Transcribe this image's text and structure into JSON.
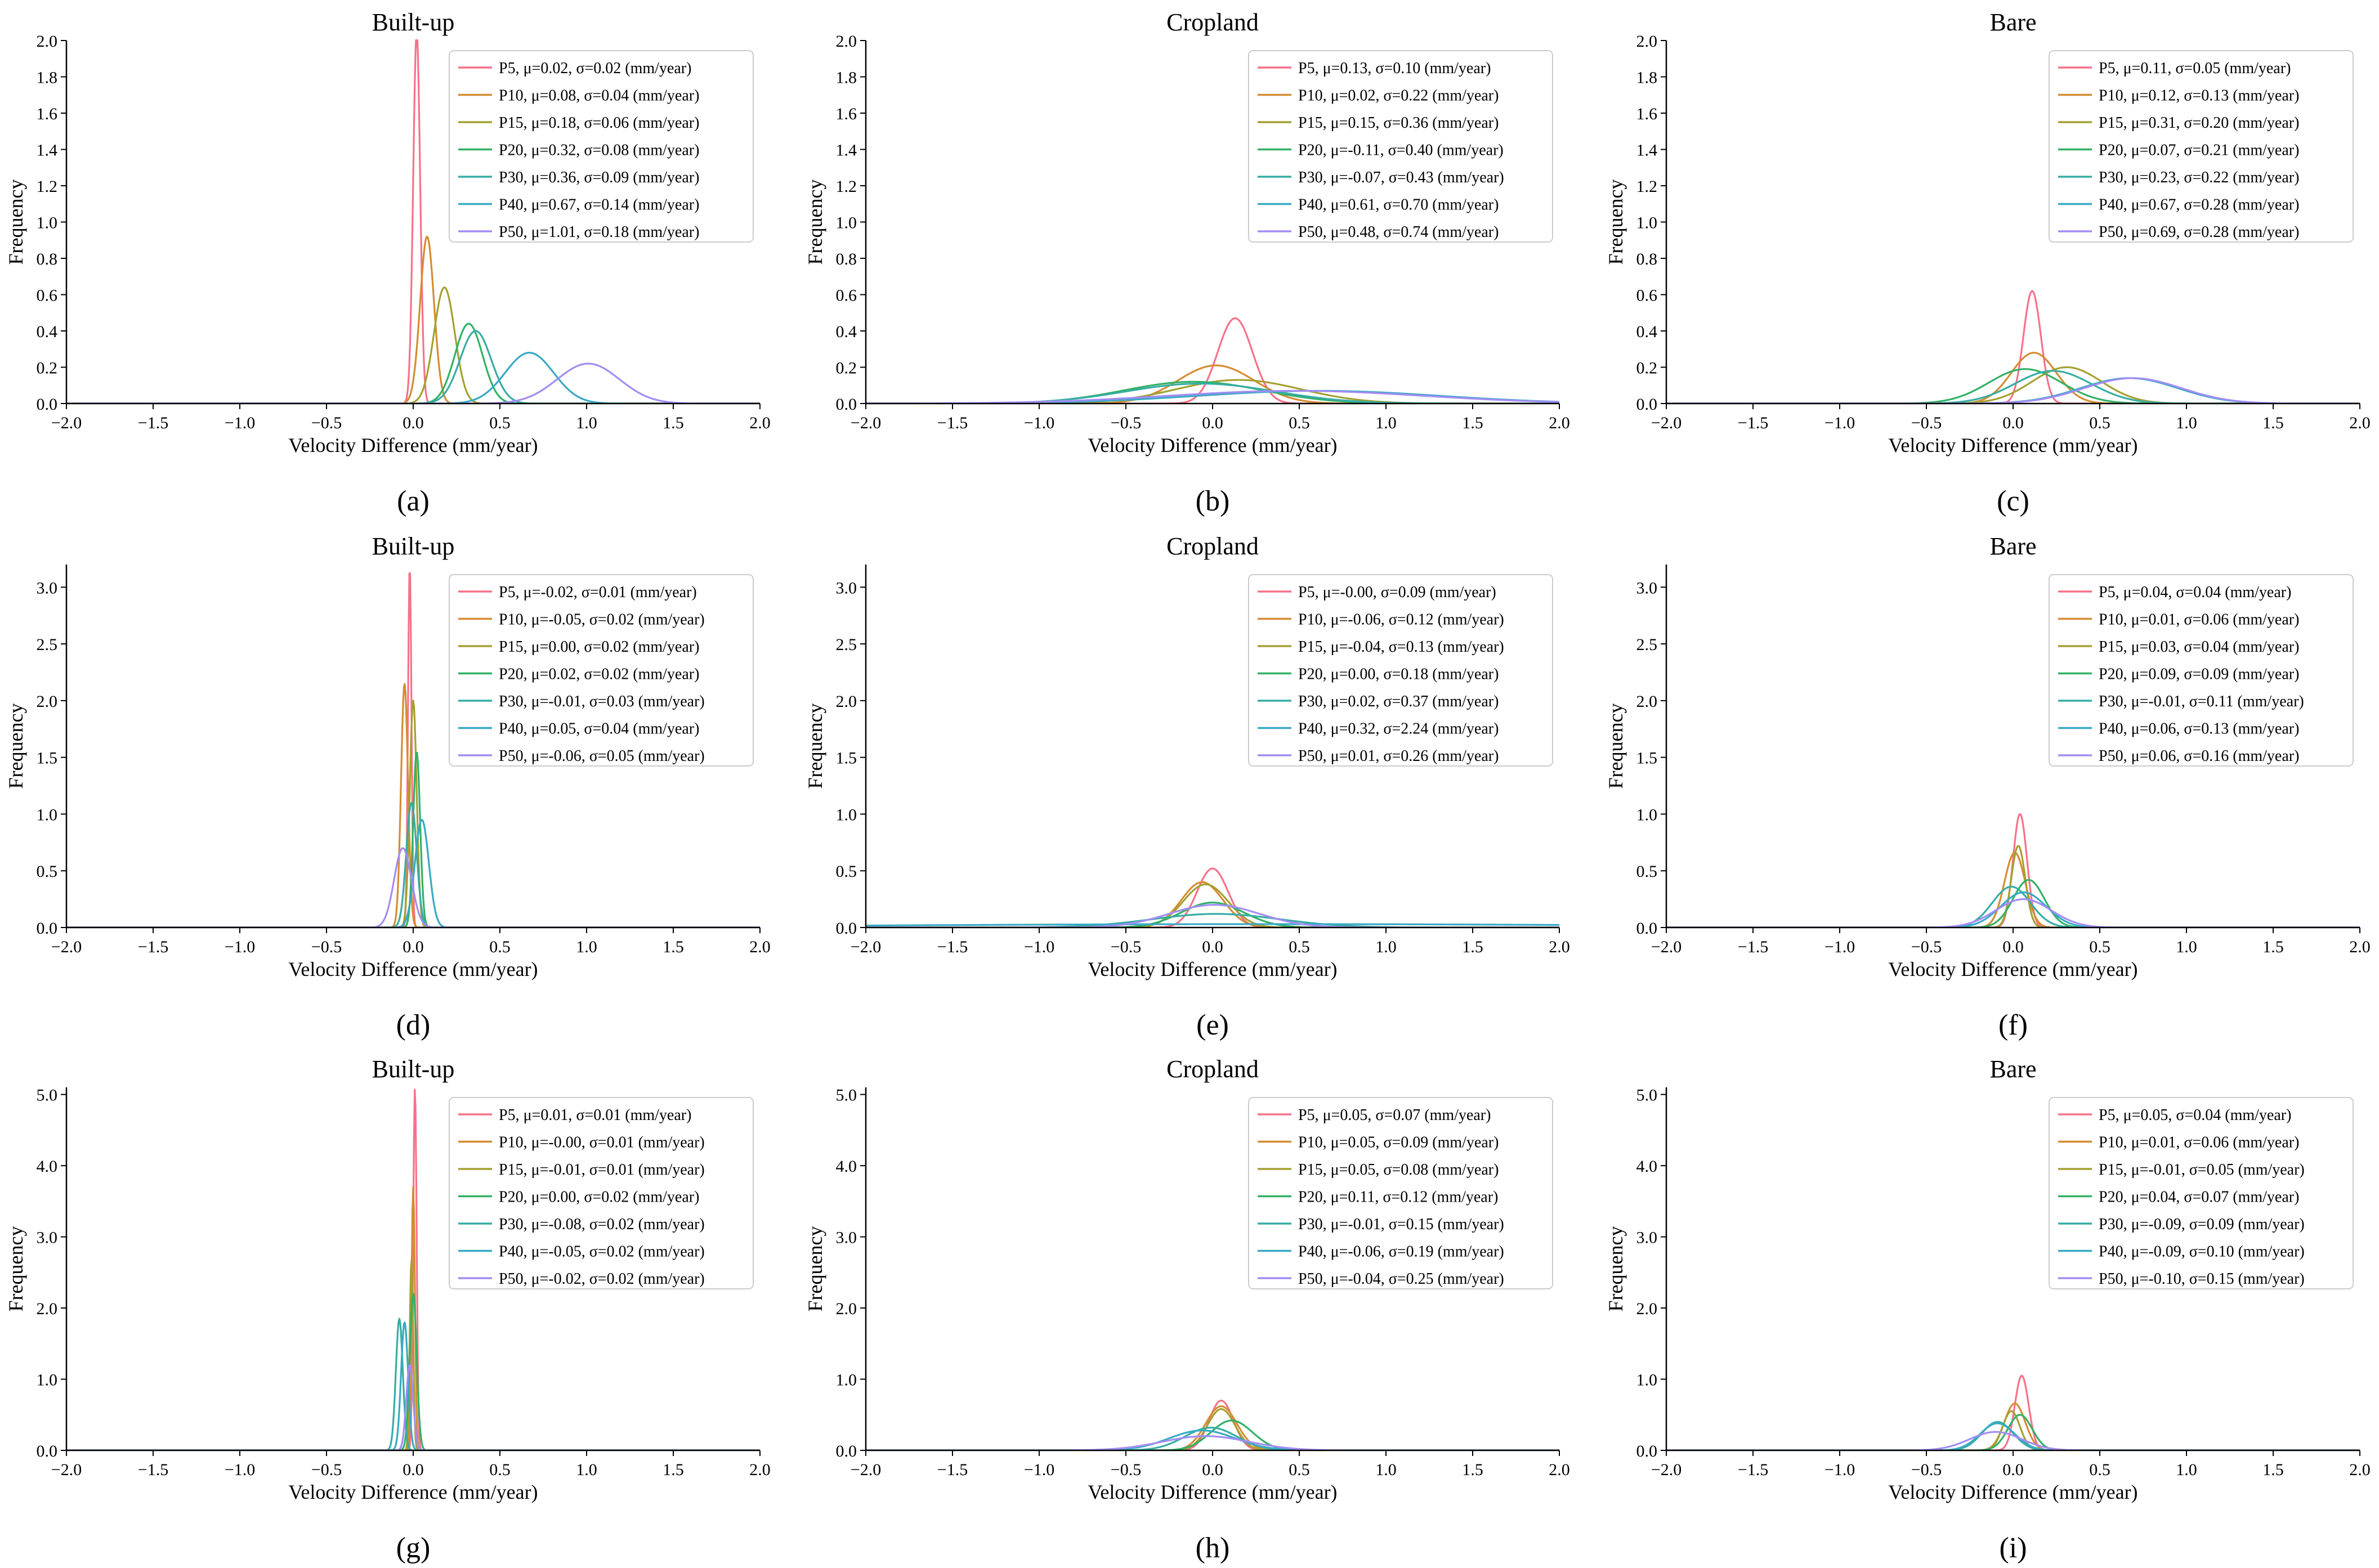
{
  "figure": {
    "x_axis_label": "Velocity Difference (mm/year)",
    "y_axis_label": "Frequency",
    "x_tick_labels": [
      "−2.0",
      "−1.5",
      "−1.0",
      "−0.5",
      "0.0",
      "0.5",
      "1.0",
      "1.5",
      "2.0"
    ],
    "unit_suffix": "(mm/year)",
    "series_colors": [
      "#f77189",
      "#d58c32",
      "#a4a031",
      "#32b166",
      "#36ada4",
      "#38a9c5",
      "#a48cf4"
    ]
  },
  "chart_data": [
    {
      "type": "line",
      "panel_label": "(a)",
      "title": "Built-up",
      "xlabel": "Velocity Difference (mm/year)",
      "ylabel": "Frequency",
      "xlim": [
        -2.0,
        2.0
      ],
      "ylim": [
        0,
        2.0
      ],
      "y_ticks": [
        0.0,
        0.2,
        0.4,
        0.6,
        0.8,
        1.0,
        1.2,
        1.4,
        1.6,
        1.8,
        2.0
      ],
      "y_tick_labels": [
        "0.0",
        "0.2",
        "0.4",
        "0.6",
        "0.8",
        "1.0",
        "1.2",
        "1.4",
        "1.6",
        "1.8",
        "2.0"
      ],
      "legend": "top-right",
      "series": [
        {
          "name": "P5",
          "mu": 0.02,
          "sigma": 0.02,
          "peak": 2.05,
          "label": "P5, μ=0.02, σ=0.02 (mm/year)"
        },
        {
          "name": "P10",
          "mu": 0.08,
          "sigma": 0.04,
          "peak": 0.92,
          "label": "P10, μ=0.08, σ=0.04 (mm/year)"
        },
        {
          "name": "P15",
          "mu": 0.18,
          "sigma": 0.06,
          "peak": 0.64,
          "label": "P15, μ=0.18, σ=0.06 (mm/year)"
        },
        {
          "name": "P20",
          "mu": 0.32,
          "sigma": 0.08,
          "peak": 0.44,
          "label": "P20, μ=0.32, σ=0.08 (mm/year)"
        },
        {
          "name": "P30",
          "mu": 0.36,
          "sigma": 0.09,
          "peak": 0.4,
          "label": "P30, μ=0.36, σ=0.09 (mm/year)"
        },
        {
          "name": "P40",
          "mu": 0.67,
          "sigma": 0.14,
          "peak": 0.28,
          "label": "P40, μ=0.67, σ=0.14 (mm/year)"
        },
        {
          "name": "P50",
          "mu": 1.01,
          "sigma": 0.18,
          "peak": 0.22,
          "label": "P50, μ=1.01, σ=0.18 (mm/year)"
        }
      ]
    },
    {
      "type": "line",
      "panel_label": "(b)",
      "title": "Cropland",
      "xlabel": "Velocity Difference (mm/year)",
      "ylabel": "Frequency",
      "xlim": [
        -2.0,
        2.0
      ],
      "ylim": [
        0,
        2.0
      ],
      "y_ticks": [
        0.0,
        0.2,
        0.4,
        0.6,
        0.8,
        1.0,
        1.2,
        1.4,
        1.6,
        1.8,
        2.0
      ],
      "y_tick_labels": [
        "0.0",
        "0.2",
        "0.4",
        "0.6",
        "0.8",
        "1.0",
        "1.2",
        "1.4",
        "1.6",
        "1.8",
        "2.0"
      ],
      "legend": "top-right",
      "series": [
        {
          "name": "P5",
          "mu": 0.13,
          "sigma": 0.1,
          "peak": 0.47,
          "label": "P5, μ=0.13, σ=0.10 (mm/year)"
        },
        {
          "name": "P10",
          "mu": 0.02,
          "sigma": 0.22,
          "peak": 0.21,
          "label": "P10, μ=0.02, σ=0.22 (mm/year)"
        },
        {
          "name": "P15",
          "mu": 0.15,
          "sigma": 0.36,
          "peak": 0.13,
          "label": "P15, μ=0.15, σ=0.36 (mm/year)"
        },
        {
          "name": "P20",
          "mu": -0.11,
          "sigma": 0.4,
          "peak": 0.12,
          "label": "P20, μ=-0.11, σ=0.40 (mm/year)"
        },
        {
          "name": "P30",
          "mu": -0.07,
          "sigma": 0.43,
          "peak": 0.11,
          "label": "P30, μ=-0.07, σ=0.43 (mm/year)"
        },
        {
          "name": "P40",
          "mu": 0.61,
          "sigma": 0.7,
          "peak": 0.07,
          "label": "P40, μ=0.61, σ=0.70 (mm/year)"
        },
        {
          "name": "P50",
          "mu": 0.48,
          "sigma": 0.74,
          "peak": 0.07,
          "label": "P50, μ=0.48, σ=0.74 (mm/year)"
        }
      ]
    },
    {
      "type": "line",
      "panel_label": "(c)",
      "title": "Bare",
      "xlabel": "Velocity Difference (mm/year)",
      "ylabel": "Frequency",
      "xlim": [
        -2.0,
        2.0
      ],
      "ylim": [
        0,
        2.0
      ],
      "y_ticks": [
        0.0,
        0.2,
        0.4,
        0.6,
        0.8,
        1.0,
        1.2,
        1.4,
        1.6,
        1.8,
        2.0
      ],
      "y_tick_labels": [
        "0.0",
        "0.2",
        "0.4",
        "0.6",
        "0.8",
        "1.0",
        "1.2",
        "1.4",
        "1.6",
        "1.8",
        "2.0"
      ],
      "legend": "top-right",
      "series": [
        {
          "name": "P5",
          "mu": 0.11,
          "sigma": 0.05,
          "peak": 0.62,
          "label": "P5, μ=0.11, σ=0.05 (mm/year)"
        },
        {
          "name": "P10",
          "mu": 0.12,
          "sigma": 0.13,
          "peak": 0.28,
          "label": "P10, μ=0.12, σ=0.13 (mm/year)"
        },
        {
          "name": "P15",
          "mu": 0.31,
          "sigma": 0.2,
          "peak": 0.2,
          "label": "P15, μ=0.31, σ=0.20 (mm/year)"
        },
        {
          "name": "P20",
          "mu": 0.07,
          "sigma": 0.21,
          "peak": 0.19,
          "label": "P20, μ=0.07, σ=0.21 (mm/year)"
        },
        {
          "name": "P30",
          "mu": 0.23,
          "sigma": 0.22,
          "peak": 0.18,
          "label": "P30, μ=0.23, σ=0.22 (mm/year)"
        },
        {
          "name": "P40",
          "mu": 0.67,
          "sigma": 0.28,
          "peak": 0.14,
          "label": "P40, μ=0.67, σ=0.28 (mm/year)"
        },
        {
          "name": "P50",
          "mu": 0.69,
          "sigma": 0.28,
          "peak": 0.14,
          "label": "P50, μ=0.69, σ=0.28 (mm/year)"
        }
      ]
    },
    {
      "type": "line",
      "panel_label": "(d)",
      "title": "Built-up",
      "xlabel": "Velocity Difference (mm/year)",
      "ylabel": "Frequency",
      "xlim": [
        -2.0,
        2.0
      ],
      "ylim": [
        0,
        3.2
      ],
      "y_ticks": [
        0.0,
        0.5,
        1.0,
        1.5,
        2.0,
        2.5,
        3.0
      ],
      "y_tick_labels": [
        "0.0",
        "0.5",
        "1.0",
        "1.5",
        "2.0",
        "2.5",
        "3.0"
      ],
      "legend": "top-right",
      "series": [
        {
          "name": "P5",
          "mu": -0.02,
          "sigma": 0.01,
          "peak": 3.2,
          "label": "P5, μ=-0.02, σ=0.01 (mm/year)"
        },
        {
          "name": "P10",
          "mu": -0.05,
          "sigma": 0.02,
          "peak": 2.15,
          "label": "P10, μ=-0.05, σ=0.02 (mm/year)"
        },
        {
          "name": "P15",
          "mu": 0.0,
          "sigma": 0.02,
          "peak": 2.0,
          "label": "P15, μ=0.00, σ=0.02 (mm/year)"
        },
        {
          "name": "P20",
          "mu": 0.02,
          "sigma": 0.02,
          "peak": 1.55,
          "label": "P20, μ=0.02, σ=0.02 (mm/year)"
        },
        {
          "name": "P30",
          "mu": -0.01,
          "sigma": 0.03,
          "peak": 1.1,
          "label": "P30, μ=-0.01, σ=0.03 (mm/year)"
        },
        {
          "name": "P40",
          "mu": 0.05,
          "sigma": 0.04,
          "peak": 0.95,
          "label": "P40, μ=0.05, σ=0.04 (mm/year)"
        },
        {
          "name": "P50",
          "mu": -0.06,
          "sigma": 0.05,
          "peak": 0.7,
          "label": "P50, μ=-0.06, σ=0.05 (mm/year)"
        }
      ]
    },
    {
      "type": "line",
      "panel_label": "(e)",
      "title": "Cropland",
      "xlabel": "Velocity Difference (mm/year)",
      "ylabel": "Frequency",
      "xlim": [
        -2.0,
        2.0
      ],
      "ylim": [
        0,
        3.2
      ],
      "y_ticks": [
        0.0,
        0.5,
        1.0,
        1.5,
        2.0,
        2.5,
        3.0
      ],
      "y_tick_labels": [
        "0.0",
        "0.5",
        "1.0",
        "1.5",
        "2.0",
        "2.5",
        "3.0"
      ],
      "legend": "top-right",
      "series": [
        {
          "name": "P5",
          "mu": -0.0,
          "sigma": 0.09,
          "peak": 0.52,
          "label": "P5, μ=-0.00, σ=0.09 (mm/year)"
        },
        {
          "name": "P10",
          "mu": -0.06,
          "sigma": 0.12,
          "peak": 0.4,
          "label": "P10, μ=-0.06, σ=0.12 (mm/year)"
        },
        {
          "name": "P15",
          "mu": -0.04,
          "sigma": 0.13,
          "peak": 0.38,
          "label": "P15, μ=-0.04, σ=0.13 (mm/year)"
        },
        {
          "name": "P20",
          "mu": 0.0,
          "sigma": 0.18,
          "peak": 0.22,
          "label": "P20, μ=0.00, σ=0.18 (mm/year)"
        },
        {
          "name": "P30",
          "mu": 0.02,
          "sigma": 0.37,
          "peak": 0.12,
          "label": "P30, μ=0.02, σ=0.37 (mm/year)"
        },
        {
          "name": "P40",
          "mu": 0.32,
          "sigma": 2.24,
          "peak": 0.03,
          "label": "P40, μ=0.32, σ=2.24 (mm/year)"
        },
        {
          "name": "P50",
          "mu": 0.01,
          "sigma": 0.26,
          "peak": 0.2,
          "label": "P50, μ=0.01, σ=0.26 (mm/year)"
        }
      ]
    },
    {
      "type": "line",
      "panel_label": "(f)",
      "title": "Bare",
      "xlabel": "Velocity Difference (mm/year)",
      "ylabel": "Frequency",
      "xlim": [
        -2.0,
        2.0
      ],
      "ylim": [
        0,
        3.2
      ],
      "y_ticks": [
        0.0,
        0.5,
        1.0,
        1.5,
        2.0,
        2.5,
        3.0
      ],
      "y_tick_labels": [
        "0.0",
        "0.5",
        "1.0",
        "1.5",
        "2.0",
        "2.5",
        "3.0"
      ],
      "legend": "top-right",
      "series": [
        {
          "name": "P5",
          "mu": 0.04,
          "sigma": 0.04,
          "peak": 1.0,
          "label": "P5, μ=0.04, σ=0.04 (mm/year)"
        },
        {
          "name": "P10",
          "mu": 0.01,
          "sigma": 0.06,
          "peak": 0.66,
          "label": "P10, μ=0.01, σ=0.06 (mm/year)"
        },
        {
          "name": "P15",
          "mu": 0.03,
          "sigma": 0.04,
          "peak": 0.72,
          "label": "P15, μ=0.03, σ=0.04 (mm/year)"
        },
        {
          "name": "P20",
          "mu": 0.09,
          "sigma": 0.09,
          "peak": 0.42,
          "label": "P20, μ=0.09, σ=0.09 (mm/year)"
        },
        {
          "name": "P30",
          "mu": -0.01,
          "sigma": 0.11,
          "peak": 0.36,
          "label": "P30, μ=-0.01, σ=0.11 (mm/year)"
        },
        {
          "name": "P40",
          "mu": 0.06,
          "sigma": 0.13,
          "peak": 0.31,
          "label": "P40, μ=0.06, σ=0.13 (mm/year)"
        },
        {
          "name": "P50",
          "mu": 0.06,
          "sigma": 0.16,
          "peak": 0.25,
          "label": "P50, μ=0.06, σ=0.16 (mm/year)"
        }
      ]
    },
    {
      "type": "line",
      "panel_label": "(g)",
      "title": "Built-up",
      "xlabel": "Velocity Difference (mm/year)",
      "ylabel": "Frequency",
      "xlim": [
        -2.0,
        2.0
      ],
      "ylim": [
        0,
        5.1
      ],
      "y_ticks": [
        0.0,
        1.0,
        2.0,
        3.0,
        4.0,
        5.0
      ],
      "y_tick_labels": [
        "0.0",
        "1.0",
        "2.0",
        "3.0",
        "4.0",
        "5.0"
      ],
      "legend": "top-right",
      "series": [
        {
          "name": "P5",
          "mu": 0.01,
          "sigma": 0.01,
          "peak": 5.1,
          "label": "P5, μ=0.01, σ=0.01 (mm/year)"
        },
        {
          "name": "P10",
          "mu": -0.0,
          "sigma": 0.01,
          "peak": 3.7,
          "label": "P10, μ=-0.00, σ=0.01 (mm/year)"
        },
        {
          "name": "P15",
          "mu": -0.01,
          "sigma": 0.01,
          "peak": 2.7,
          "label": "P15, μ=-0.01, σ=0.01 (mm/year)"
        },
        {
          "name": "P20",
          "mu": 0.0,
          "sigma": 0.02,
          "peak": 2.2,
          "label": "P20, μ=0.00, σ=0.02 (mm/year)"
        },
        {
          "name": "P30",
          "mu": -0.08,
          "sigma": 0.02,
          "peak": 1.85,
          "label": "P30, μ=-0.08, σ=0.02 (mm/year)"
        },
        {
          "name": "P40",
          "mu": -0.05,
          "sigma": 0.02,
          "peak": 1.8,
          "label": "P40, μ=-0.05, σ=0.02 (mm/year)"
        },
        {
          "name": "P50",
          "mu": -0.02,
          "sigma": 0.02,
          "peak": 1.2,
          "label": "P50, μ=-0.02, σ=0.02 (mm/year)"
        }
      ]
    },
    {
      "type": "line",
      "panel_label": "(h)",
      "title": "Cropland",
      "xlabel": "Velocity Difference (mm/year)",
      "ylabel": "Frequency",
      "xlim": [
        -2.0,
        2.0
      ],
      "ylim": [
        0,
        5.1
      ],
      "y_ticks": [
        0.0,
        1.0,
        2.0,
        3.0,
        4.0,
        5.0
      ],
      "y_tick_labels": [
        "0.0",
        "1.0",
        "2.0",
        "3.0",
        "4.0",
        "5.0"
      ],
      "legend": "top-right",
      "series": [
        {
          "name": "P5",
          "mu": 0.05,
          "sigma": 0.07,
          "peak": 0.7,
          "label": "P5, μ=0.05, σ=0.07 (mm/year)"
        },
        {
          "name": "P10",
          "mu": 0.05,
          "sigma": 0.09,
          "peak": 0.62,
          "label": "P10, μ=0.05, σ=0.09 (mm/year)"
        },
        {
          "name": "P15",
          "mu": 0.05,
          "sigma": 0.08,
          "peak": 0.58,
          "label": "P15, μ=0.05, σ=0.08 (mm/year)"
        },
        {
          "name": "P20",
          "mu": 0.11,
          "sigma": 0.12,
          "peak": 0.42,
          "label": "P20, μ=0.11, σ=0.12 (mm/year)"
        },
        {
          "name": "P30",
          "mu": -0.01,
          "sigma": 0.15,
          "peak": 0.32,
          "label": "P30, μ=-0.01, σ=0.15 (mm/year)"
        },
        {
          "name": "P40",
          "mu": -0.06,
          "sigma": 0.19,
          "peak": 0.28,
          "label": "P40, μ=-0.06, σ=0.19 (mm/year)"
        },
        {
          "name": "P50",
          "mu": -0.04,
          "sigma": 0.25,
          "peak": 0.2,
          "label": "P50, μ=-0.04, σ=0.25 (mm/year)"
        }
      ]
    },
    {
      "type": "line",
      "panel_label": "(i)",
      "title": "Bare",
      "xlabel": "Velocity Difference (mm/year)",
      "ylabel": "Frequency",
      "xlim": [
        -2.0,
        2.0
      ],
      "ylim": [
        0,
        5.1
      ],
      "y_ticks": [
        0.0,
        1.0,
        2.0,
        3.0,
        4.0,
        5.0
      ],
      "y_tick_labels": [
        "0.0",
        "1.0",
        "2.0",
        "3.0",
        "4.0",
        "5.0"
      ],
      "legend": "top-right",
      "series": [
        {
          "name": "P5",
          "mu": 0.05,
          "sigma": 0.04,
          "peak": 1.05,
          "label": "P5, μ=0.05, σ=0.04 (mm/year)"
        },
        {
          "name": "P10",
          "mu": 0.01,
          "sigma": 0.06,
          "peak": 0.66,
          "label": "P10, μ=0.01, σ=0.06 (mm/year)"
        },
        {
          "name": "P15",
          "mu": -0.01,
          "sigma": 0.05,
          "peak": 0.55,
          "label": "P15, μ=-0.01, σ=0.05 (mm/year)"
        },
        {
          "name": "P20",
          "mu": 0.04,
          "sigma": 0.07,
          "peak": 0.5,
          "label": "P20, μ=0.04, σ=0.07 (mm/year)"
        },
        {
          "name": "P30",
          "mu": -0.09,
          "sigma": 0.09,
          "peak": 0.4,
          "label": "P30, μ=-0.09, σ=0.09 (mm/year)"
        },
        {
          "name": "P40",
          "mu": -0.09,
          "sigma": 0.1,
          "peak": 0.38,
          "label": "P40, μ=-0.09, σ=0.10 (mm/year)"
        },
        {
          "name": "P50",
          "mu": -0.1,
          "sigma": 0.15,
          "peak": 0.26,
          "label": "P50, μ=-0.10, σ=0.15 (mm/year)"
        }
      ]
    }
  ]
}
